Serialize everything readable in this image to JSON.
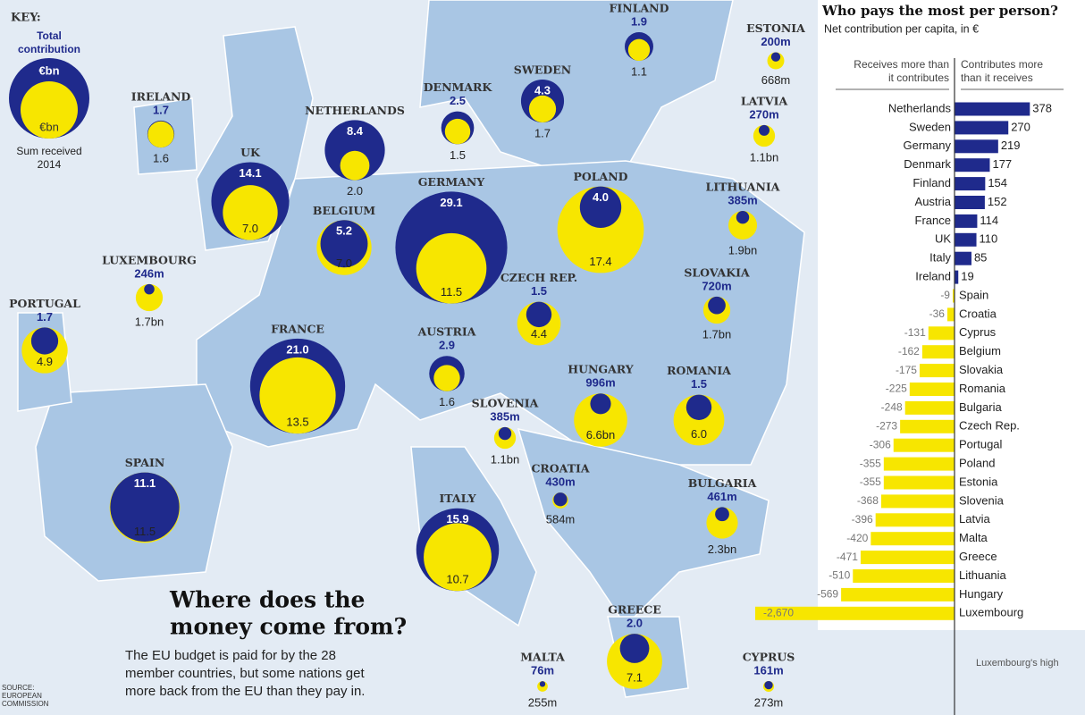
{
  "headline": {
    "title_lines": [
      "Where does the",
      "money come from?"
    ],
    "description_lines": [
      "The EU budget is paid for by the 28",
      "member countries, but some nations get",
      "more back from the EU than they pay in."
    ]
  },
  "source_lines": [
    "SOURCE:",
    "EUROPEAN",
    "COMMISSION"
  ],
  "key": {
    "title": "KEY:",
    "contribution_lines": [
      "Total",
      "contribution"
    ],
    "contribution_unit": "€bn",
    "received_unit": "€bn",
    "received_lines": [
      "Sum received",
      "2014"
    ]
  },
  "map": {
    "contribution_color": "#1f2a8c",
    "received_color": "#f7e600",
    "countries": [
      {
        "name": "FINLAND",
        "contribution": 1.9,
        "contribution_label": "1.9",
        "received": 1.1,
        "received_label": "1.1"
      },
      {
        "name": "ESTONIA",
        "contribution": 0.2,
        "contribution_label": "200m",
        "received": 0.668,
        "received_label": "668m"
      },
      {
        "name": "SWEDEN",
        "contribution": 4.3,
        "contribution_label": "4.3",
        "received": 1.7,
        "received_label": "1.7"
      },
      {
        "name": "IRELAND",
        "contribution": 1.7,
        "contribution_label": "1.7",
        "received": 1.6,
        "received_label": "1.6"
      },
      {
        "name": "NETHERLANDS",
        "contribution": 8.4,
        "contribution_label": "8.4",
        "received": 2.0,
        "received_label": "2.0"
      },
      {
        "name": "DENMARK",
        "contribution": 2.5,
        "contribution_label": "2.5",
        "received": 1.5,
        "received_label": "1.5"
      },
      {
        "name": "LATVIA",
        "contribution": 0.27,
        "contribution_label": "270m",
        "received": 1.1,
        "received_label": "1.1bn"
      },
      {
        "name": "UK",
        "contribution": 14.1,
        "contribution_label": "14.1",
        "received": 7.0,
        "received_label": "7.0"
      },
      {
        "name": "GERMANY",
        "contribution": 29.1,
        "contribution_label": "29.1",
        "received": 11.5,
        "received_label": "11.5"
      },
      {
        "name": "POLAND",
        "contribution": 4.0,
        "contribution_label": "4.0",
        "received": 17.4,
        "received_label": "17.4"
      },
      {
        "name": "LITHUANIA",
        "contribution": 0.385,
        "contribution_label": "385m",
        "received": 1.9,
        "received_label": "1.9bn"
      },
      {
        "name": "BELGIUM",
        "contribution": 5.2,
        "contribution_label": "5.2",
        "received": 7.0,
        "received_label": "7.0"
      },
      {
        "name": "LUXEMBOURG",
        "contribution": 0.246,
        "contribution_label": "246m",
        "received": 1.7,
        "received_label": "1.7bn"
      },
      {
        "name": "CZECH REP.",
        "contribution": 1.5,
        "contribution_label": "1.5",
        "received": 4.4,
        "received_label": "4.4"
      },
      {
        "name": "SLOVAKIA",
        "contribution": 0.72,
        "contribution_label": "720m",
        "received": 1.7,
        "received_label": "1.7bn"
      },
      {
        "name": "PORTUGAL",
        "contribution": 1.7,
        "contribution_label": "1.7",
        "received": 4.9,
        "received_label": "4.9"
      },
      {
        "name": "FRANCE",
        "contribution": 21.0,
        "contribution_label": "21.0",
        "received": 13.5,
        "received_label": "13.5"
      },
      {
        "name": "AUSTRIA",
        "contribution": 2.9,
        "contribution_label": "2.9",
        "received": 1.6,
        "received_label": "1.6"
      },
      {
        "name": "HUNGARY",
        "contribution": 0.996,
        "contribution_label": "996m",
        "received": 6.6,
        "received_label": "6.6bn"
      },
      {
        "name": "ROMANIA",
        "contribution": 1.5,
        "contribution_label": "1.5",
        "received": 6.0,
        "received_label": "6.0"
      },
      {
        "name": "SLOVENIA",
        "contribution": 0.385,
        "contribution_label": "385m",
        "received": 1.1,
        "received_label": "1.1bn"
      },
      {
        "name": "CROATIA",
        "contribution": 0.43,
        "contribution_label": "430m",
        "received": 0.584,
        "received_label": "584m"
      },
      {
        "name": "SPAIN",
        "contribution": 11.1,
        "contribution_label": "11.1",
        "received": 11.5,
        "received_label": "11.5"
      },
      {
        "name": "ITALY",
        "contribution": 15.9,
        "contribution_label": "15.9",
        "received": 10.7,
        "received_label": "10.7"
      },
      {
        "name": "BULGARIA",
        "contribution": 0.461,
        "contribution_label": "461m",
        "received": 2.3,
        "received_label": "2.3bn"
      },
      {
        "name": "GREECE",
        "contribution": 2.0,
        "contribution_label": "2.0",
        "received": 7.1,
        "received_label": "7.1"
      },
      {
        "name": "MALTA",
        "contribution": 0.076,
        "contribution_label": "76m",
        "received": 0.255,
        "received_label": "255m"
      },
      {
        "name": "CYPRUS",
        "contribution": 0.161,
        "contribution_label": "161m",
        "received": 0.273,
        "received_label": "273m"
      }
    ]
  },
  "chart_data": {
    "type": "bar",
    "orientation": "horizontal",
    "title": "Who pays the most per person?",
    "subtitle": "Net contribution per capita, in €",
    "left_header_lines": [
      "Receives more than",
      "it contributes"
    ],
    "right_header_lines": [
      "Contributes more",
      "than it receives"
    ],
    "categories": [
      "Netherlands",
      "Sweden",
      "Germany",
      "Denmark",
      "Finland",
      "Austria",
      "France",
      "UK",
      "Italy",
      "Ireland",
      "Spain",
      "Croatia",
      "Cyprus",
      "Belgium",
      "Slovakia",
      "Romania",
      "Bulgaria",
      "Czech Rep.",
      "Portugal",
      "Poland",
      "Estonia",
      "Slovenia",
      "Latvia",
      "Malta",
      "Greece",
      "Lithuania",
      "Hungary",
      "Luxembourg"
    ],
    "values": [
      378,
      270,
      219,
      177,
      154,
      152,
      114,
      110,
      85,
      19,
      -9,
      -36,
      -131,
      -162,
      -175,
      -225,
      -248,
      -273,
      -306,
      -355,
      -355,
      -368,
      -396,
      -420,
      -471,
      -510,
      -569,
      -2670
    ],
    "value_labels": [
      "378",
      "270",
      "219",
      "177",
      "154",
      "152",
      "114",
      "110",
      "85",
      "19",
      "-9",
      "-36",
      "-131",
      "-162",
      "-175",
      "-225",
      "-248",
      "-273",
      "-306",
      "-355",
      "-355",
      "-368",
      "-396",
      "-420",
      "-471",
      "-510",
      "-569",
      "-2,670"
    ],
    "positive_color": "#1f2a8c",
    "negative_color": "#f7e600",
    "xlim": [
      -1000,
      400
    ],
    "note": "Luxembourg's high"
  }
}
